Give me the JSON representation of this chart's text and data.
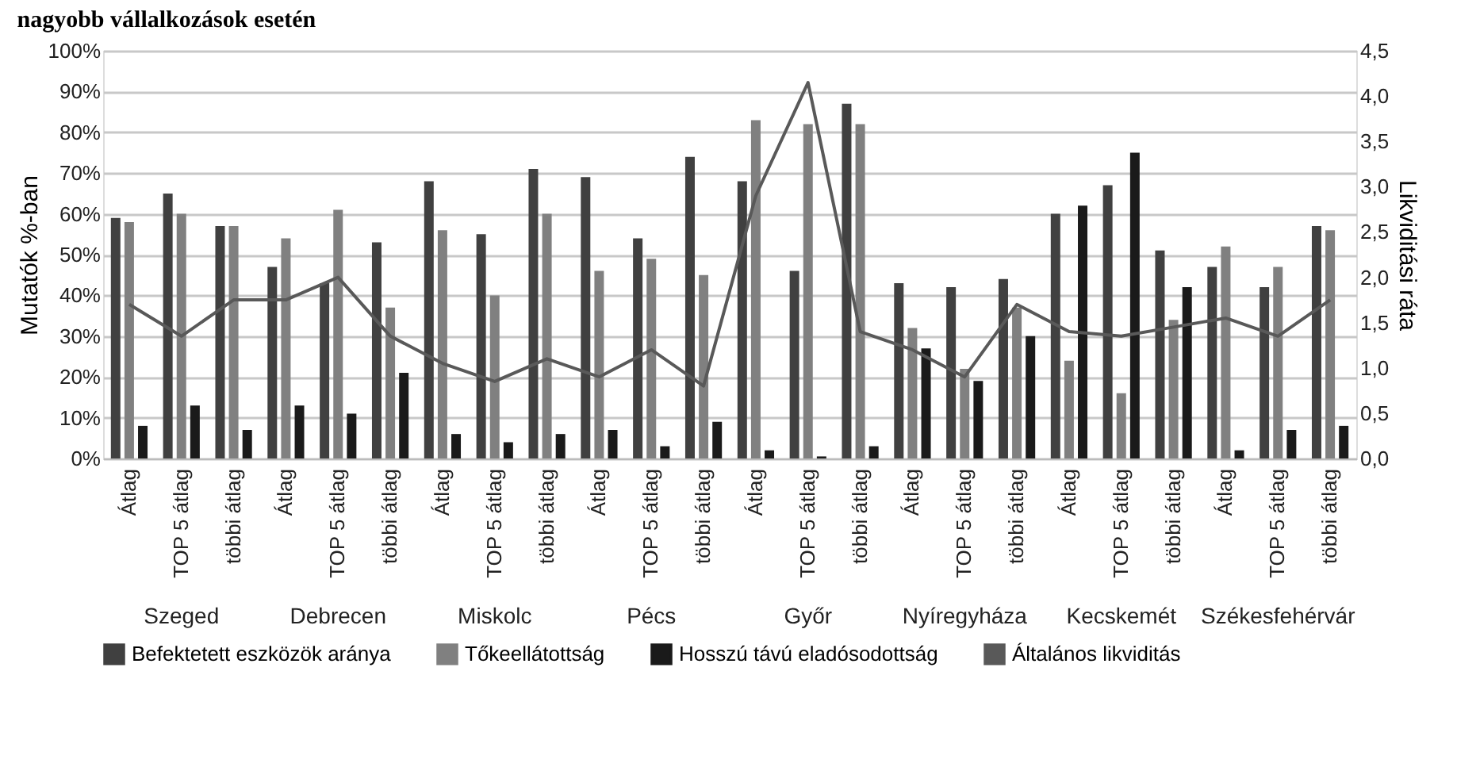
{
  "chart_data": {
    "type": "bar",
    "title": "nagyobb vállalkozások esetén",
    "ylabel": "Mutatók %-ban",
    "y2label": "Likviditási ráta",
    "categories": [
      "Átlag",
      "TOP 5 átlag",
      "többi átlag",
      "Átlag",
      "TOP 5 átlag",
      "többi átlag",
      "Átlag",
      "TOP 5 átlag",
      "többi átlag",
      "Átlag",
      "TOP 5 átlag",
      "többi átlag",
      "Átlag",
      "TOP 5 átlag",
      "többi átlag",
      "Átlag",
      "TOP 5 átlag",
      "többi átlag",
      "Átlag",
      "TOP 5 átlag",
      "többi átlag",
      "Átlag",
      "TOP 5 átlag",
      "többi átlag"
    ],
    "annotations": [
      "Szeged",
      "Debrecen",
      "Miskolc",
      "Pécs",
      "Győr",
      "Nyíregyháza",
      "Kecskemét",
      "Székesfehérvár"
    ],
    "series": [
      {
        "name": "Befektetett eszközök aránya",
        "color": "#404040",
        "values": [
          59,
          65,
          57,
          47,
          43,
          53,
          68,
          55,
          71,
          69,
          54,
          74,
          68,
          46,
          87,
          43,
          42,
          44,
          60,
          67,
          51,
          47,
          42,
          57
        ]
      },
      {
        "name": "Tőkeellátottság",
        "color": "#808080",
        "values": [
          58,
          60,
          57,
          54,
          61,
          37,
          56,
          40,
          60,
          46,
          49,
          45,
          83,
          82,
          82,
          32,
          22,
          37,
          24,
          16,
          34,
          52,
          47,
          56
        ]
      },
      {
        "name": "Hosszú távú eladósodottság",
        "color": "#1a1a1a",
        "values": [
          8,
          13,
          7,
          13,
          11,
          21,
          6,
          4,
          6,
          7,
          3,
          9,
          2,
          0.5,
          3,
          27,
          19,
          30,
          62,
          75,
          42,
          2,
          7,
          8
        ]
      },
      {
        "name": "Általános likviditás",
        "color": "#595959",
        "type": "line",
        "axis": "y2",
        "values": [
          1.7,
          1.35,
          1.75,
          1.75,
          2.0,
          1.35,
          1.05,
          0.85,
          1.1,
          0.9,
          1.2,
          0.8,
          2.9,
          4.15,
          1.4,
          1.2,
          0.9,
          1.7,
          1.4,
          1.35,
          1.45,
          1.55,
          1.35,
          1.75
        ]
      }
    ],
    "ylim": [
      0,
      100
    ],
    "yticks": [
      {
        "value": 0,
        "label": "0%"
      },
      {
        "value": 10,
        "label": "10%"
      },
      {
        "value": 20,
        "label": "20%"
      },
      {
        "value": 30,
        "label": "30%"
      },
      {
        "value": 40,
        "label": "40%"
      },
      {
        "value": 50,
        "label": "50%"
      },
      {
        "value": 60,
        "label": "60%"
      },
      {
        "value": 70,
        "label": "70%"
      },
      {
        "value": 80,
        "label": "80%"
      },
      {
        "value": 90,
        "label": "90%"
      },
      {
        "value": 100,
        "label": "100%"
      }
    ],
    "y2lim": [
      0,
      4.5
    ],
    "y2ticks": [
      {
        "value": 0,
        "label": "0,0"
      },
      {
        "value": 0.5,
        "label": "0,5"
      },
      {
        "value": 1,
        "label": "1,0"
      },
      {
        "value": 1.5,
        "label": "1,5"
      },
      {
        "value": 2,
        "label": "2,0"
      },
      {
        "value": 2.5,
        "label": "2,5"
      },
      {
        "value": 3,
        "label": "3,0"
      },
      {
        "value": 3.5,
        "label": "3,5"
      },
      {
        "value": 4,
        "label": "4,0"
      },
      {
        "value": 4.5,
        "label": "4,5"
      }
    ],
    "grid": "y",
    "legend": "bottom"
  }
}
